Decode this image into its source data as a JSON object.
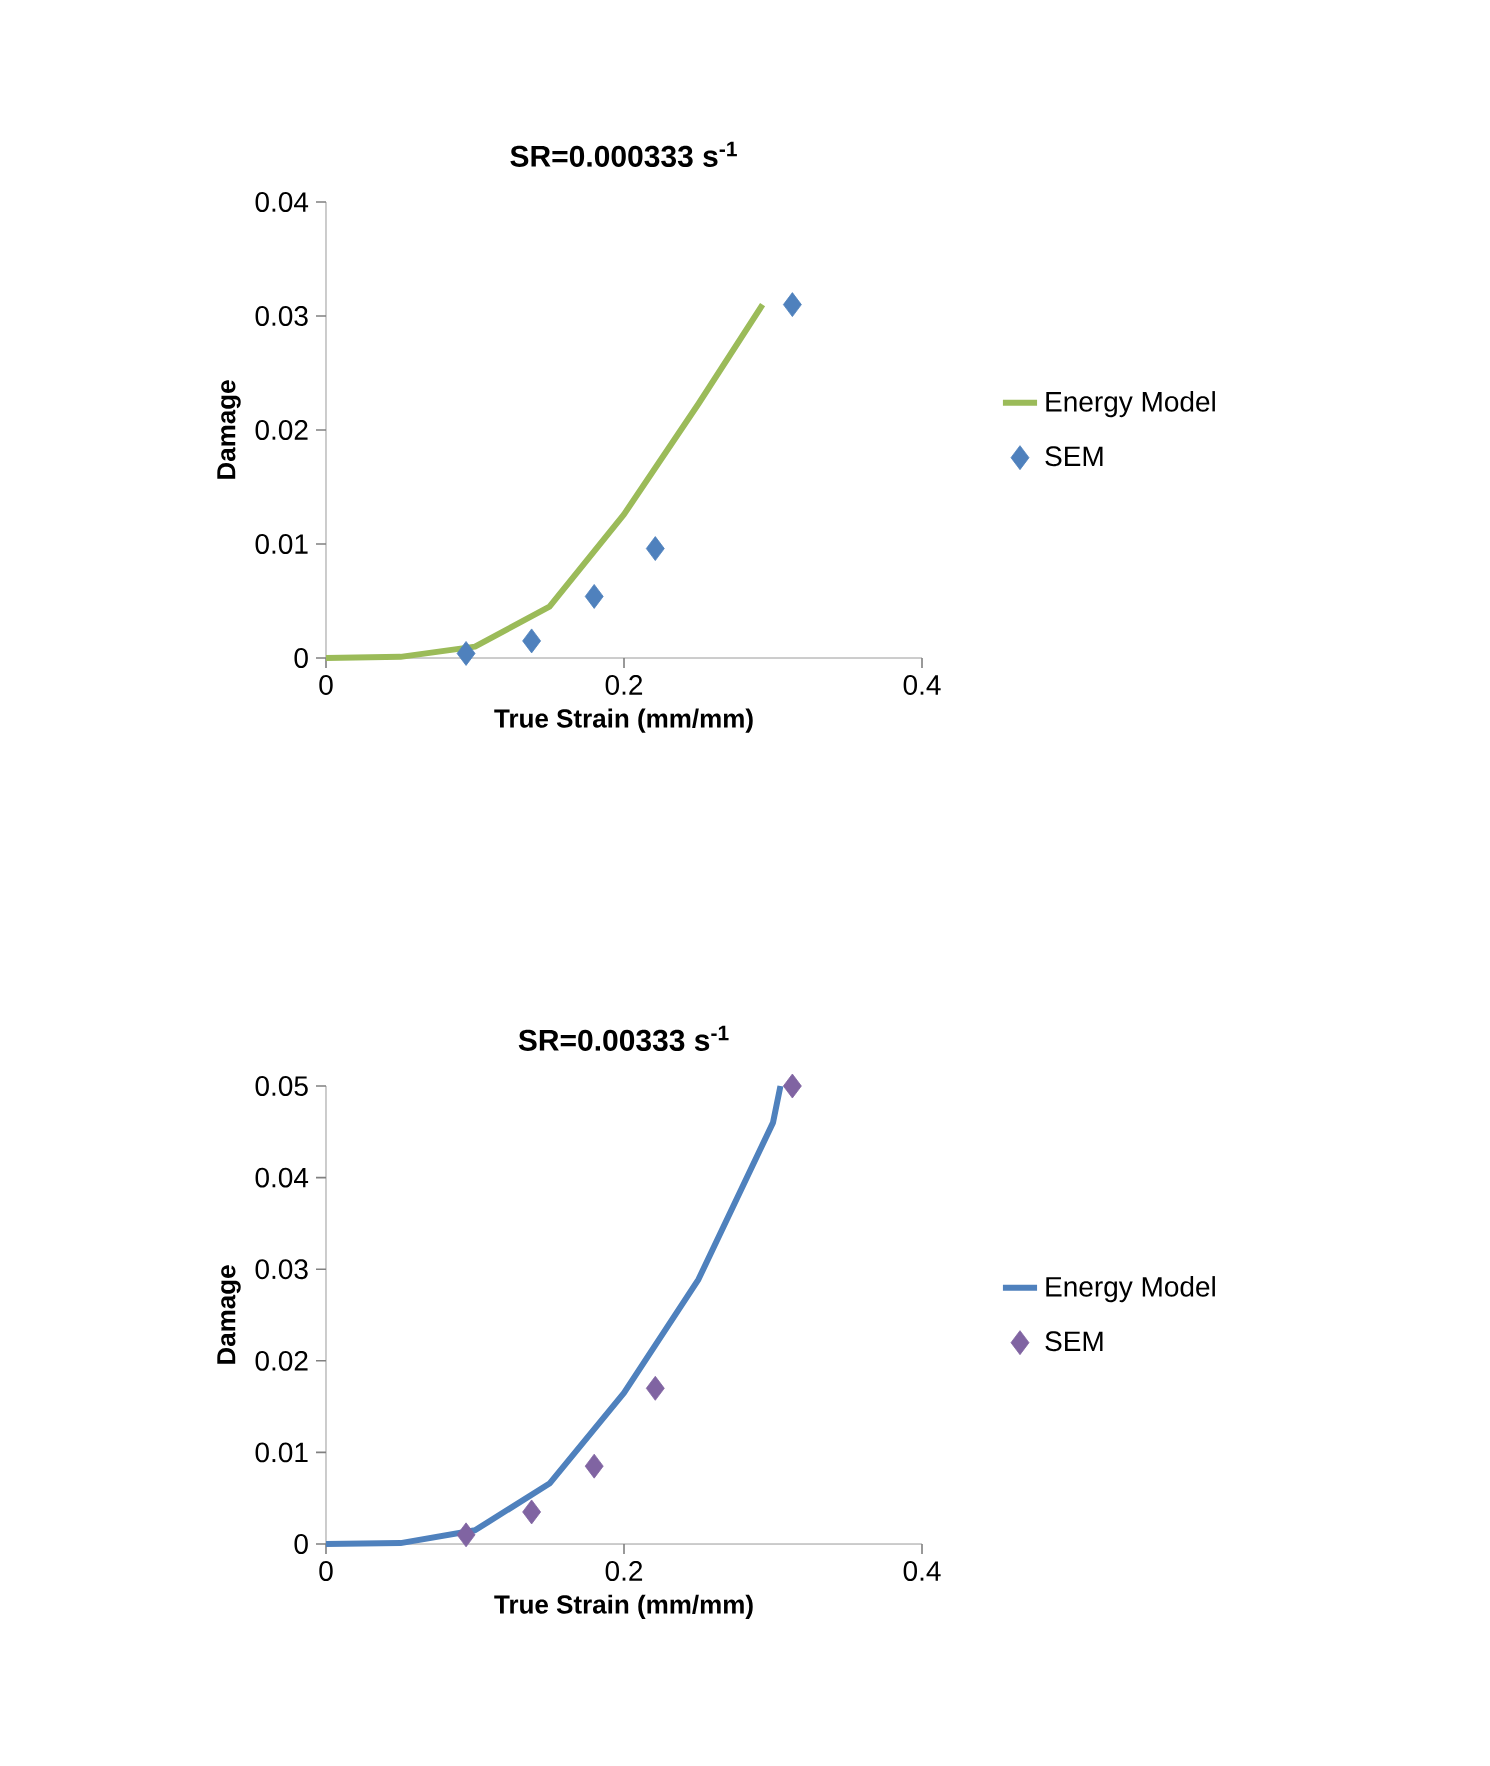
{
  "chart_data": [
    {
      "type": "line",
      "title": "SR=0.000333 s$^{-1}$",
      "xlabel": "True Strain (mm/mm)",
      "ylabel": "Damage",
      "xlim": [
        0,
        0.4
      ],
      "ylim": [
        0,
        0.04
      ],
      "xticks": [
        0,
        0.2,
        0.4
      ],
      "yticks": [
        0,
        0.01,
        0.02,
        0.03,
        0.04
      ],
      "grid": false,
      "legend": "right",
      "series": [
        {
          "name": "Energy Model",
          "color": "#9bbb59",
          "marker": "none",
          "line_style": "solid",
          "x": [
            0,
            0.05,
            0.1,
            0.15,
            0.2,
            0.25,
            0.293
          ],
          "values": [
            0,
            0.0001,
            0.001,
            0.0045,
            0.0126,
            0.0223,
            0.031
          ]
        },
        {
          "name": "SEM",
          "type": "scatter",
          "color": "#4f81bd",
          "marker": "diamond",
          "x": [
            0.094,
            0.138,
            0.18,
            0.221,
            0.313
          ],
          "values": [
            0.0004,
            0.0015,
            0.0054,
            0.0096,
            0.031
          ]
        }
      ]
    },
    {
      "type": "line",
      "title": "SR=0.00333 s$^{-1}$",
      "xlabel": "True Strain (mm/mm)",
      "ylabel": "Damage",
      "xlim": [
        0,
        0.4
      ],
      "ylim": [
        0,
        0.05
      ],
      "xticks": [
        0,
        0.2,
        0.4
      ],
      "yticks": [
        0,
        0.01,
        0.02,
        0.03,
        0.04,
        0.05
      ],
      "grid": false,
      "legend": "right",
      "series": [
        {
          "name": "Energy Model",
          "color": "#4f81bd",
          "marker": "none",
          "line_style": "solid",
          "x": [
            0,
            0.05,
            0.1,
            0.15,
            0.2,
            0.25,
            0.3,
            0.305
          ],
          "values": [
            0,
            0.0001,
            0.0015,
            0.0066,
            0.0165,
            0.0289,
            0.046,
            0.05
          ]
        },
        {
          "name": "SEM",
          "type": "scatter",
          "color": "#8064a2",
          "marker": "diamond",
          "x": [
            0.094,
            0.138,
            0.18,
            0.221,
            0.313
          ],
          "values": [
            0.001,
            0.0035,
            0.0085,
            0.017,
            0.05
          ]
        }
      ]
    }
  ]
}
